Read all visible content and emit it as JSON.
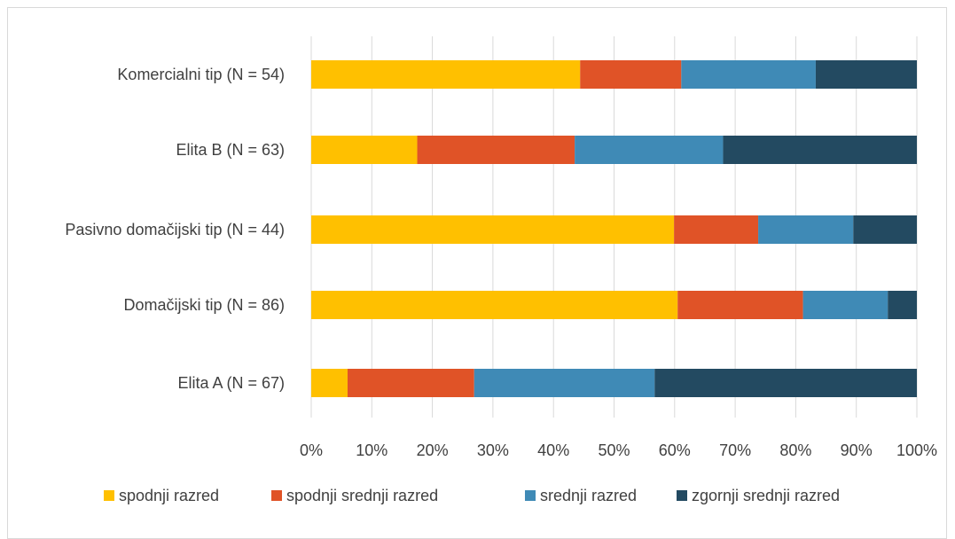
{
  "chart_data": {
    "type": "bar",
    "orientation": "horizontal",
    "stacked": "100%",
    "categories": [
      "Komercialni tip (N = 54)",
      "Elita B (N = 63)",
      "Pasivno domačijski tip (N = 44)",
      "Domačijski tip (N = 86)",
      "Elita A (N = 67)"
    ],
    "series": [
      {
        "name": "spodnji razred",
        "color": "#FFC000",
        "values": [
          44.4,
          17.5,
          59.9,
          60.5,
          6.0
        ]
      },
      {
        "name": "spodnji srednji razred",
        "color": "#E05327",
        "values": [
          16.7,
          26.0,
          13.9,
          20.7,
          20.9
        ]
      },
      {
        "name": "srednji razred",
        "color": "#3F8AB6",
        "values": [
          22.2,
          24.5,
          15.7,
          14.0,
          29.8
        ]
      },
      {
        "name": "zgornji srednji razred",
        "color": "#234A61",
        "values": [
          16.7,
          32.0,
          10.5,
          4.8,
          43.3
        ]
      }
    ],
    "xaxis": {
      "ticks": [
        "0%",
        "10%",
        "20%",
        "30%",
        "40%",
        "50%",
        "60%",
        "70%",
        "80%",
        "90%",
        "100%"
      ],
      "range": [
        0,
        100
      ]
    },
    "grid": true,
    "legend": "bottom"
  }
}
